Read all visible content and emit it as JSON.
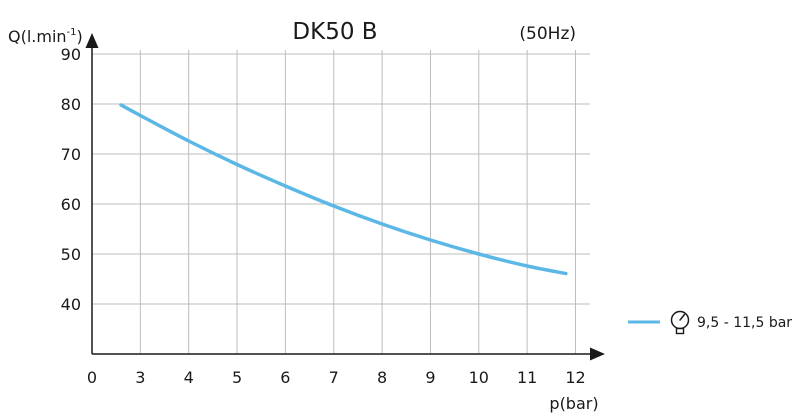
{
  "chart_data": {
    "type": "line",
    "title": "DK50 B",
    "subtitle": "(50Hz)",
    "ylabel": "Q(l.min",
    "ylabel_superscript": "-1",
    "ylabel_close": ")",
    "xlabel": "p(bar)",
    "x_origin_label": "0",
    "xlim": [
      2,
      12.3
    ],
    "ylim": [
      30,
      92
    ],
    "x_ticks": [
      3,
      4,
      5,
      6,
      7,
      8,
      9,
      10,
      11,
      12
    ],
    "y_ticks": [
      40,
      50,
      60,
      70,
      80,
      90
    ],
    "grid": true,
    "legend_position": "right",
    "series": [
      {
        "name": "9,5 - 11,5 bar",
        "color": "#5bb8e6",
        "icon": "pressure-gauge-icon",
        "x": [
          2.6,
          3.0,
          4.0,
          5.0,
          6.0,
          7.0,
          8.0,
          9.0,
          10.0,
          11.0,
          11.8
        ],
        "y": [
          79.8,
          77.7,
          72.6,
          67.9,
          63.6,
          59.6,
          56.0,
          52.8,
          50.0,
          47.6,
          46.1
        ]
      }
    ]
  }
}
